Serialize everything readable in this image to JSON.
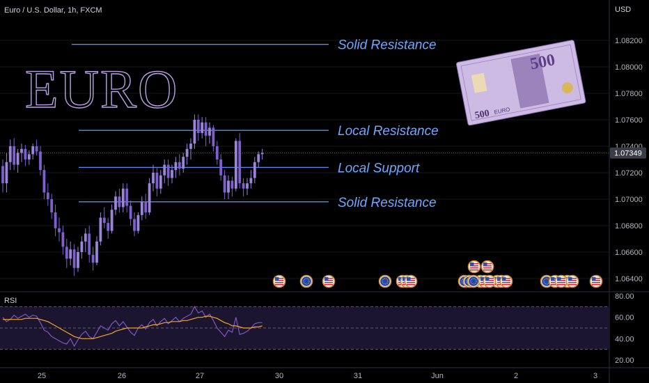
{
  "header": {
    "symbol_title": "Euro / U.S. Dollar, 1h, FXCM",
    "currency": "USD"
  },
  "annotations": {
    "big_title": "EURO",
    "line_labels": [
      "Solid Resistance",
      "Local Resistance",
      "Local Support",
      "Solid Resistance"
    ]
  },
  "euro_note": {
    "denomination": "500",
    "word": "EURO"
  },
  "colors": {
    "background": "#000000",
    "candle_up": "#9c84d8",
    "candle_down": "#7e5fd0",
    "level_line": "#4f8ff7",
    "level_text": "#6ea8ff",
    "rsi_line": "#7e57c2",
    "rsi_ma": "#f5a623"
  },
  "rsi": {
    "label": "RSI",
    "ticks": [
      "80.00",
      "60.00",
      "40.00",
      "20.00"
    ]
  },
  "chart_data": [
    {
      "type": "candlestick",
      "title": "Euro / U.S. Dollar, 1h, FXCM",
      "ylabel": "USD",
      "ylim": [
        1.063,
        1.084
      ],
      "x_ticks": [
        "25",
        "26",
        "27",
        "30",
        "31",
        "Jun",
        "2",
        "3"
      ],
      "y_ticks": [
        "1.08200",
        "1.08000",
        "1.07800",
        "1.07600",
        "1.07400",
        "1.07200",
        "1.07000",
        "1.06800",
        "1.06600",
        "1.06400"
      ],
      "last_price": "1.07349",
      "levels": [
        {
          "label": "Solid Resistance",
          "price": 1.0817
        },
        {
          "label": "Local Resistance",
          "price": 1.0752
        },
        {
          "label": "Local Support",
          "price": 1.0724
        },
        {
          "label": "Solid Resistance",
          "price": 1.0698
        }
      ],
      "candles": [
        [
          1.0725,
          1.073,
          1.0705,
          1.0712
        ],
        [
          1.0712,
          1.0735,
          1.0705,
          1.0728
        ],
        [
          1.0728,
          1.0745,
          1.0722,
          1.074
        ],
        [
          1.074,
          1.0746,
          1.0722,
          1.0726
        ],
        [
          1.0726,
          1.0738,
          1.072,
          1.0735
        ],
        [
          1.0735,
          1.0742,
          1.0728,
          1.0738
        ],
        [
          1.0738,
          1.0741,
          1.0725,
          1.073
        ],
        [
          1.073,
          1.0737,
          1.0726,
          1.0734
        ],
        [
          1.0734,
          1.0742,
          1.073,
          1.074
        ],
        [
          1.074,
          1.0745,
          1.0733,
          1.0736
        ],
        [
          1.0736,
          1.074,
          1.0718,
          1.0722
        ],
        [
          1.0722,
          1.0726,
          1.07,
          1.0705
        ],
        [
          1.0705,
          1.0712,
          1.0695,
          1.07
        ],
        [
          1.07,
          1.0704,
          1.0685,
          1.069
        ],
        [
          1.069,
          1.0696,
          1.0672,
          1.0678
        ],
        [
          1.0678,
          1.0686,
          1.0668,
          1.0675
        ],
        [
          1.0675,
          1.068,
          1.0658,
          1.0664
        ],
        [
          1.0664,
          1.067,
          1.0648,
          1.0655
        ],
        [
          1.0655,
          1.0668,
          1.065,
          1.0662
        ],
        [
          1.0662,
          1.0666,
          1.0642,
          1.0648
        ],
        [
          1.0648,
          1.0664,
          1.0645,
          1.066
        ],
        [
          1.066,
          1.0672,
          1.0655,
          1.0668
        ],
        [
          1.0668,
          1.0678,
          1.066,
          1.0674
        ],
        [
          1.0674,
          1.068,
          1.0652,
          1.0658
        ],
        [
          1.0658,
          1.0664,
          1.0646,
          1.0652
        ],
        [
          1.0652,
          1.0672,
          1.065,
          1.0668
        ],
        [
          1.0668,
          1.069,
          1.0665,
          1.0686
        ],
        [
          1.0686,
          1.0694,
          1.0678,
          1.0682
        ],
        [
          1.0682,
          1.0686,
          1.067,
          1.0676
        ],
        [
          1.0676,
          1.0696,
          1.0674,
          1.0692
        ],
        [
          1.0692,
          1.0706,
          1.0688,
          1.0702
        ],
        [
          1.0702,
          1.0708,
          1.069,
          1.0694
        ],
        [
          1.0694,
          1.0712,
          1.069,
          1.0708
        ],
        [
          1.0708,
          1.0712,
          1.069,
          1.0695
        ],
        [
          1.0695,
          1.0699,
          1.068,
          1.0685
        ],
        [
          1.0685,
          1.069,
          1.0672,
          1.0676
        ],
        [
          1.0676,
          1.069,
          1.0674,
          1.0688
        ],
        [
          1.0688,
          1.0702,
          1.0684,
          1.0698
        ],
        [
          1.0698,
          1.0704,
          1.0685,
          1.069
        ],
        [
          1.069,
          1.0716,
          1.0688,
          1.0712
        ],
        [
          1.0712,
          1.0726,
          1.0706,
          1.072
        ],
        [
          1.072,
          1.0724,
          1.0702,
          1.0708
        ],
        [
          1.0708,
          1.0722,
          1.0704,
          1.0718
        ],
        [
          1.0718,
          1.073,
          1.0712,
          1.0726
        ],
        [
          1.0726,
          1.073,
          1.071,
          1.0716
        ],
        [
          1.0716,
          1.0726,
          1.0712,
          1.0722
        ],
        [
          1.0722,
          1.0732,
          1.0716,
          1.0728
        ],
        [
          1.0728,
          1.0734,
          1.0718,
          1.0723
        ],
        [
          1.0723,
          1.0735,
          1.072,
          1.0732
        ],
        [
          1.0732,
          1.0742,
          1.0726,
          1.0738
        ],
        [
          1.0738,
          1.0746,
          1.073,
          1.0742
        ],
        [
          1.0742,
          1.0764,
          1.0738,
          1.076
        ],
        [
          1.076,
          1.0764,
          1.0744,
          1.075
        ],
        [
          1.075,
          1.0762,
          1.0746,
          1.0758
        ],
        [
          1.0758,
          1.0762,
          1.074,
          1.0748
        ],
        [
          1.0748,
          1.0758,
          1.0742,
          1.0754
        ],
        [
          1.0754,
          1.0756,
          1.0736,
          1.074
        ],
        [
          1.074,
          1.0744,
          1.0726,
          1.073
        ],
        [
          1.073,
          1.0734,
          1.0714,
          1.0718
        ],
        [
          1.0718,
          1.0722,
          1.07,
          1.0705
        ],
        [
          1.0705,
          1.0718,
          1.07,
          1.0714
        ],
        [
          1.0714,
          1.0717,
          1.0702,
          1.0708
        ],
        [
          1.0708,
          1.0746,
          1.0706,
          1.0744
        ],
        [
          1.0744,
          1.075,
          1.0708,
          1.0712
        ],
        [
          1.0712,
          1.0716,
          1.0702,
          1.0708
        ],
        [
          1.0708,
          1.0716,
          1.0703,
          1.0712
        ],
        [
          1.0712,
          1.0722,
          1.0708,
          1.0716
        ],
        [
          1.0716,
          1.0732,
          1.0712,
          1.0728
        ],
        [
          1.0728,
          1.0736,
          1.0724,
          1.0734
        ],
        [
          1.0734,
          1.0738,
          1.073,
          1.0735
        ]
      ],
      "event_markers_row1": [
        "US",
        "EU",
        "US",
        "EU",
        "US",
        "EU",
        "US",
        "EU",
        "US",
        "EU"
      ],
      "event_markers_row2": [
        "US",
        "US"
      ]
    },
    {
      "type": "line",
      "title": "RSI",
      "ylim": [
        15,
        85
      ],
      "y_ticks": [
        "80.00",
        "60.00",
        "40.00",
        "20.00"
      ],
      "series": [
        {
          "values": [
            60,
            56,
            58,
            62,
            59,
            61,
            63,
            60,
            62,
            61,
            55,
            48,
            46,
            42,
            40,
            38,
            36,
            35,
            40,
            33,
            39,
            44,
            47,
            42,
            40,
            46,
            52,
            50,
            48,
            54,
            57,
            52,
            56,
            51,
            46,
            43,
            50,
            53,
            49,
            55,
            58,
            52,
            56,
            59,
            54,
            57,
            60,
            56,
            59,
            61,
            63,
            70,
            64,
            66,
            60,
            63,
            57,
            50,
            46,
            42,
            48,
            46,
            60,
            44,
            45,
            47,
            50,
            54,
            55,
            55
          ]
        },
        {
          "values": [
            58,
            58,
            58,
            58,
            58,
            58,
            59,
            59,
            59,
            59,
            58,
            57,
            56,
            54,
            52,
            50,
            48,
            46,
            44,
            42,
            41,
            40,
            40,
            40,
            40,
            41,
            42,
            43,
            44,
            45,
            47,
            48,
            49,
            50,
            50,
            50,
            50,
            50,
            51,
            52,
            53,
            53,
            54,
            55,
            55,
            56,
            56,
            56,
            57,
            57,
            58,
            59,
            60,
            60,
            61,
            61,
            60,
            59,
            57,
            55,
            54,
            52,
            52,
            51,
            50,
            50,
            50,
            51,
            51,
            52
          ]
        }
      ]
    }
  ]
}
